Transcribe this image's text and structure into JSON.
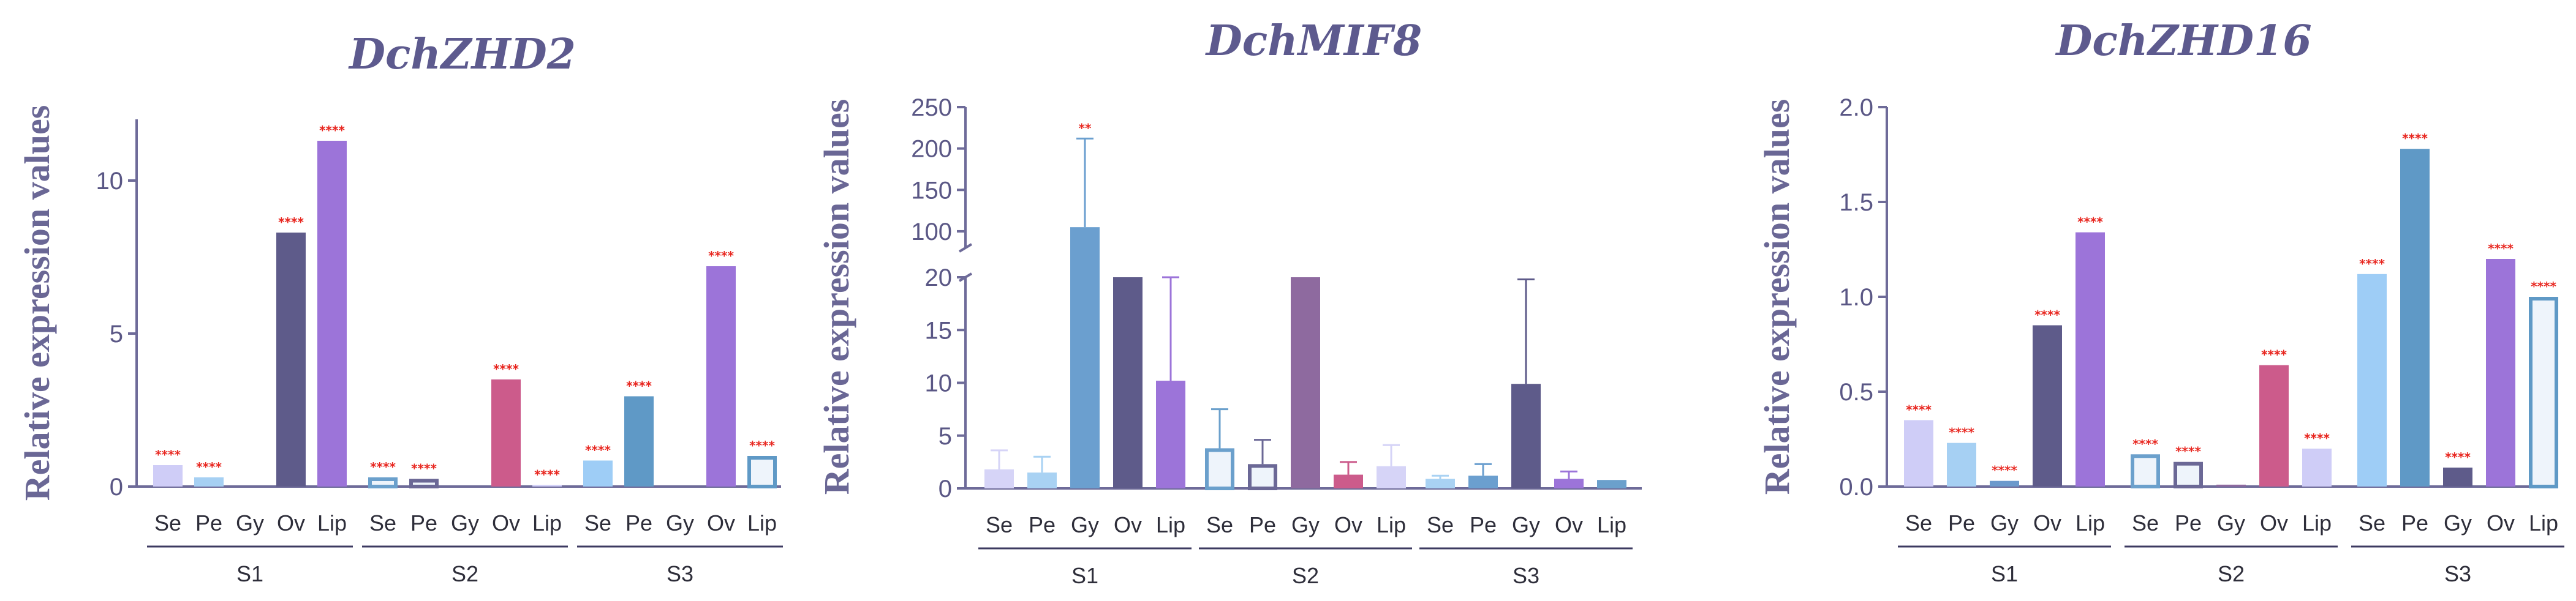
{
  "chart_data": [
    {
      "type": "bar",
      "title": "DchZHD2",
      "ylabel": "Relative expression values",
      "xlabel": "",
      "ylim": [
        0,
        12
      ],
      "yticks": [
        "0",
        "5",
        "10"
      ],
      "yticks_values": [
        0,
        5,
        10
      ],
      "groups": [
        "S1",
        "S2",
        "S3"
      ],
      "categories": [
        "Se",
        "Pe",
        "Gy",
        "Ov",
        "Lip"
      ],
      "bars": [
        {
          "group": "S1",
          "category": "Se",
          "value": 0.7,
          "err": 0,
          "color": "#cfcdf7",
          "hollow": false,
          "sig": "****"
        },
        {
          "group": "S1",
          "category": "Pe",
          "value": 0.3,
          "err": 0,
          "color": "#a6d0f3",
          "hollow": false,
          "sig": "****"
        },
        {
          "group": "S1",
          "category": "Gy",
          "value": 0,
          "err": 0,
          "color": "#6b99cc",
          "hollow": false,
          "sig": ""
        },
        {
          "group": "S1",
          "category": "Ov",
          "value": 8.3,
          "err": 0,
          "color": "#5e5b8a",
          "hollow": false,
          "sig": "****"
        },
        {
          "group": "S1",
          "category": "Lip",
          "value": 11.3,
          "err": 0,
          "color": "#9c74d9",
          "hollow": false,
          "sig": "****"
        },
        {
          "group": "S2",
          "category": "Se",
          "value": 0.3,
          "err": 0,
          "color": "#6ba0cc",
          "hollow": true,
          "sig": "****"
        },
        {
          "group": "S2",
          "category": "Pe",
          "value": 0.25,
          "err": 0,
          "color": "#6b6896",
          "hollow": true,
          "sig": "****"
        },
        {
          "group": "S2",
          "category": "Gy",
          "value": 0,
          "err": 0,
          "color": "#8e6a9f",
          "hollow": false,
          "sig": ""
        },
        {
          "group": "S2",
          "category": "Ov",
          "value": 3.5,
          "err": 0,
          "color": "#cc5b8b",
          "hollow": false,
          "sig": "****"
        },
        {
          "group": "S2",
          "category": "Lip",
          "value": 0.05,
          "err": 0,
          "color": "#cfcdf7",
          "hollow": false,
          "sig": "****"
        },
        {
          "group": "S3",
          "category": "Se",
          "value": 0.85,
          "err": 0,
          "color": "#9ecdf6",
          "hollow": false,
          "sig": "****"
        },
        {
          "group": "S3",
          "category": "Pe",
          "value": 2.95,
          "err": 0,
          "color": "#5f99c6",
          "hollow": false,
          "sig": "****"
        },
        {
          "group": "S3",
          "category": "Gy",
          "value": 0,
          "err": 0,
          "color": "#5e5b8a",
          "hollow": false,
          "sig": ""
        },
        {
          "group": "S3",
          "category": "Ov",
          "value": 7.2,
          "err": 0,
          "color": "#9c74d9",
          "hollow": false,
          "sig": "****"
        },
        {
          "group": "S3",
          "category": "Lip",
          "value": 1.0,
          "err": 0,
          "color": "#5f99c6",
          "hollow": true,
          "sig": "****"
        }
      ]
    },
    {
      "type": "bar",
      "title": "DchMIF8",
      "ylabel": "Relative expression values",
      "xlabel": "",
      "ylim": [
        0,
        250
      ],
      "axis_break": {
        "lower_range": [
          0,
          20
        ],
        "upper_range": [
          80,
          250
        ]
      },
      "yticks": [
        "0",
        "5",
        "10",
        "15",
        "20",
        "100",
        "150",
        "200",
        "250"
      ],
      "yticks_values": [
        0,
        5,
        10,
        15,
        20,
        100,
        150,
        200,
        250
      ],
      "groups": [
        "S1",
        "S2",
        "S3"
      ],
      "categories": [
        "Se",
        "Pe",
        "Gy",
        "Ov",
        "Lip"
      ],
      "bars": [
        {
          "group": "S1",
          "category": "Se",
          "value": 1.8,
          "err": 1.8,
          "color": "#d6d4f7",
          "hollow": false,
          "sig": ""
        },
        {
          "group": "S1",
          "category": "Pe",
          "value": 1.5,
          "err": 1.5,
          "color": "#a9d2f3",
          "hollow": false,
          "sig": ""
        },
        {
          "group": "S1",
          "category": "Gy",
          "value": 105,
          "err": 107,
          "color": "#6b9fcf",
          "hollow": false,
          "sig": "**"
        },
        {
          "group": "S1",
          "category": "Ov",
          "value": 20,
          "err": 0,
          "color": "#5e5b8a",
          "hollow": false,
          "sig": ""
        },
        {
          "group": "S1",
          "category": "Lip",
          "value": 10.2,
          "err": 9.8,
          "color": "#9c74d9",
          "hollow": false,
          "sig": ""
        },
        {
          "group": "S2",
          "category": "Se",
          "value": 3.8,
          "err": 3.7,
          "color": "#6ba0cc",
          "hollow": true,
          "sig": ""
        },
        {
          "group": "S2",
          "category": "Pe",
          "value": 2.3,
          "err": 2.3,
          "color": "#6b6896",
          "hollow": true,
          "sig": ""
        },
        {
          "group": "S2",
          "category": "Gy",
          "value": 20,
          "err": 0,
          "color": "#8e6a9f",
          "hollow": false,
          "sig": ""
        },
        {
          "group": "S2",
          "category": "Ov",
          "value": 1.3,
          "err": 1.2,
          "color": "#cc5b8b",
          "hollow": false,
          "sig": ""
        },
        {
          "group": "S2",
          "category": "Lip",
          "value": 2.1,
          "err": 2.0,
          "color": "#d6d4f7",
          "hollow": false,
          "sig": ""
        },
        {
          "group": "S3",
          "category": "Se",
          "value": 0.9,
          "err": 0.3,
          "color": "#a9d2f3",
          "hollow": false,
          "sig": ""
        },
        {
          "group": "S3",
          "category": "Pe",
          "value": 1.2,
          "err": 1.1,
          "color": "#6b9fcf",
          "hollow": false,
          "sig": ""
        },
        {
          "group": "S3",
          "category": "Gy",
          "value": 9.9,
          "err": 9.9,
          "color": "#5e5b8a",
          "hollow": false,
          "sig": ""
        },
        {
          "group": "S3",
          "category": "Ov",
          "value": 0.9,
          "err": 0.7,
          "color": "#9c74d9",
          "hollow": false,
          "sig": ""
        },
        {
          "group": "S3",
          "category": "Lip",
          "value": 0.8,
          "err": 0,
          "color": "#6ba0cc",
          "hollow": false,
          "sig": ""
        }
      ]
    },
    {
      "type": "bar",
      "title": "DchZHD16",
      "ylabel": "Relative expression values",
      "xlabel": "",
      "ylim": [
        0,
        2.0
      ],
      "yticks": [
        "0.0",
        "0.5",
        "1.0",
        "1.5",
        "2.0"
      ],
      "yticks_values": [
        0,
        0.5,
        1.0,
        1.5,
        2.0
      ],
      "groups": [
        "S1",
        "S2",
        "S3"
      ],
      "categories": [
        "Se",
        "Pe",
        "Gy",
        "Ov",
        "Lip"
      ],
      "bars": [
        {
          "group": "S1",
          "category": "Se",
          "value": 0.35,
          "err": 0,
          "color": "#cfcdf7",
          "hollow": false,
          "sig": "****"
        },
        {
          "group": "S1",
          "category": "Pe",
          "value": 0.23,
          "err": 0,
          "color": "#a6d0f3",
          "hollow": false,
          "sig": "****"
        },
        {
          "group": "S1",
          "category": "Gy",
          "value": 0.03,
          "err": 0,
          "color": "#6b99cc",
          "hollow": false,
          "sig": "****"
        },
        {
          "group": "S1",
          "category": "Ov",
          "value": 0.85,
          "err": 0,
          "color": "#5e5b8a",
          "hollow": false,
          "sig": "****"
        },
        {
          "group": "S1",
          "category": "Lip",
          "value": 1.34,
          "err": 0,
          "color": "#9c74d9",
          "hollow": false,
          "sig": "****"
        },
        {
          "group": "S2",
          "category": "Se",
          "value": 0.17,
          "err": 0,
          "color": "#6ba0cc",
          "hollow": true,
          "sig": "****"
        },
        {
          "group": "S2",
          "category": "Pe",
          "value": 0.13,
          "err": 0,
          "color": "#6b6896",
          "hollow": true,
          "sig": "****"
        },
        {
          "group": "S2",
          "category": "Gy",
          "value": 0.01,
          "err": 0,
          "color": "#8e6a9f",
          "hollow": false,
          "sig": ""
        },
        {
          "group": "S2",
          "category": "Ov",
          "value": 0.64,
          "err": 0,
          "color": "#cc5b8b",
          "hollow": false,
          "sig": "****"
        },
        {
          "group": "S2",
          "category": "Lip",
          "value": 0.2,
          "err": 0,
          "color": "#cfcdf7",
          "hollow": false,
          "sig": "****"
        },
        {
          "group": "S3",
          "category": "Se",
          "value": 1.12,
          "err": 0,
          "color": "#9ecdf6",
          "hollow": false,
          "sig": "****"
        },
        {
          "group": "S3",
          "category": "Pe",
          "value": 1.78,
          "err": 0,
          "color": "#5f99c6",
          "hollow": false,
          "sig": "****"
        },
        {
          "group": "S3",
          "category": "Gy",
          "value": 0.1,
          "err": 0,
          "color": "#5e5b8a",
          "hollow": false,
          "sig": "****"
        },
        {
          "group": "S3",
          "category": "Ov",
          "value": 1.2,
          "err": 0,
          "color": "#9c74d9",
          "hollow": false,
          "sig": "****"
        },
        {
          "group": "S3",
          "category": "Lip",
          "value": 1.0,
          "err": 0,
          "color": "#5f99c6",
          "hollow": true,
          "sig": "****"
        }
      ]
    }
  ]
}
